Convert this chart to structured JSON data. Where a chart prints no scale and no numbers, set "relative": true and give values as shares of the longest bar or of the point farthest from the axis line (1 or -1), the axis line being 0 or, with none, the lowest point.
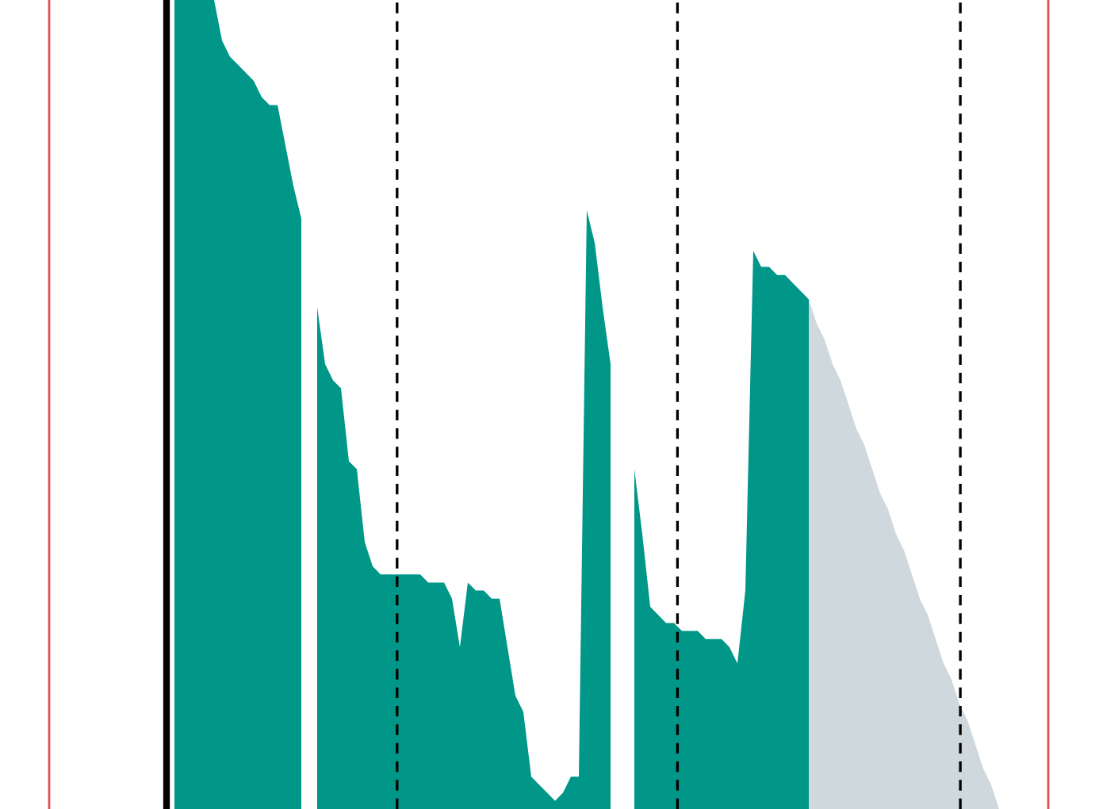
{
  "chart_data": {
    "type": "area",
    "relative": true,
    "categories": [
      null,
      null,
      null,
      null,
      null,
      null,
      null,
      null,
      null,
      null,
      null,
      null,
      null,
      null,
      null,
      null,
      null,
      null,
      null,
      null,
      null,
      null,
      null,
      null,
      null,
      null,
      null,
      null,
      null,
      null,
      null,
      null,
      null,
      null,
      null,
      null,
      null,
      null,
      null,
      null,
      null,
      null,
      null,
      null,
      null,
      null,
      null,
      null,
      null,
      null,
      null,
      null,
      null,
      null,
      null,
      null,
      null,
      null,
      null,
      null,
      null,
      null,
      null,
      null,
      null,
      null,
      null,
      null,
      null,
      null,
      null,
      null,
      null,
      null,
      null,
      null,
      null,
      null,
      null,
      null,
      null,
      null,
      null,
      null,
      null,
      null,
      null,
      null,
      null,
      null,
      null,
      null,
      null,
      null,
      null,
      null,
      null,
      null,
      null,
      null,
      null,
      null,
      null,
      null,
      null
    ],
    "series": [
      {
        "color": "#009688",
        "values": [
          1.0,
          1.0,
          1.0,
          1.0,
          1.0,
          1.0,
          0.95,
          0.93,
          0.92,
          0.91,
          0.9,
          0.88,
          0.87,
          0.87,
          0.82,
          0.77,
          0.73,
          null,
          0.62,
          0.55,
          0.53,
          0.52,
          0.43,
          0.42,
          0.33,
          0.3,
          0.29,
          0.29,
          0.29,
          0.29,
          0.29,
          0.29,
          0.28,
          0.28,
          0.28,
          0.26,
          0.2,
          0.28,
          0.27,
          0.27,
          0.26,
          0.26,
          0.2,
          0.14,
          0.12,
          0.04,
          0.03,
          0.02,
          0.01,
          0.02,
          0.04,
          0.04,
          0.74,
          0.7,
          0.62,
          0.55,
          null,
          null,
          0.42,
          0.34,
          0.25,
          0.24,
          0.23,
          0.23,
          0.22,
          0.22,
          0.22,
          0.21,
          0.21,
          0.21,
          0.2,
          0.18,
          0.27,
          0.69,
          0.67,
          0.67,
          0.66,
          0.66,
          0.65,
          0.64,
          0.63,
          null,
          null,
          null,
          null,
          null,
          null,
          null,
          null,
          null,
          null,
          null,
          null,
          null,
          null,
          null,
          null,
          null,
          null,
          null,
          null,
          null,
          null,
          null,
          null
        ]
      },
      {
        "color": "#cfd8dc",
        "values": [
          null,
          null,
          null,
          null,
          null,
          null,
          null,
          null,
          null,
          null,
          null,
          null,
          null,
          null,
          null,
          null,
          null,
          null,
          null,
          null,
          null,
          null,
          null,
          null,
          null,
          null,
          null,
          null,
          null,
          null,
          null,
          null,
          null,
          null,
          null,
          null,
          null,
          null,
          null,
          null,
          null,
          null,
          null,
          null,
          null,
          null,
          null,
          null,
          null,
          null,
          null,
          null,
          null,
          null,
          null,
          null,
          null,
          null,
          null,
          null,
          null,
          null,
          null,
          null,
          null,
          null,
          null,
          null,
          null,
          null,
          null,
          null,
          null,
          null,
          null,
          null,
          null,
          null,
          null,
          null,
          0.63,
          0.6,
          0.58,
          0.55,
          0.53,
          0.5,
          0.47,
          0.45,
          0.42,
          0.39,
          0.37,
          0.34,
          0.32,
          0.29,
          0.26,
          0.24,
          0.21,
          0.18,
          0.16,
          0.13,
          0.11,
          0.08,
          0.05,
          0.03,
          0
        ]
      }
    ]
  }
}
